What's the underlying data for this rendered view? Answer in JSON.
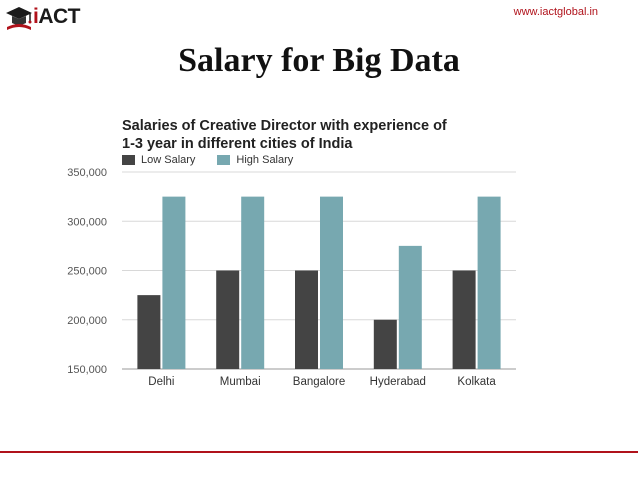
{
  "header": {
    "logo_text": "iACT",
    "url": "www.iactglobal.in"
  },
  "slide": {
    "title": "Salary for Big Data"
  },
  "colors": {
    "low": "#444444",
    "high": "#77a8b0",
    "accent": "#b0121b",
    "grid": "#d8d8d8"
  },
  "chart_data": {
    "type": "bar",
    "title": "Salaries of Creative Director with experience of 1-3 year in different cities of India",
    "title_lines": [
      "Salaries of Creative Director with experience of",
      "1-3 year in different cities of India"
    ],
    "categories": [
      "Delhi",
      "Mumbai",
      "Bangalore",
      "Hyderabad",
      "Kolkata"
    ],
    "series": [
      {
        "name": "Low Salary",
        "values": [
          225000,
          250000,
          250000,
          200000,
          250000
        ]
      },
      {
        "name": "High Salary",
        "values": [
          325000,
          325000,
          325000,
          275000,
          325000
        ]
      }
    ],
    "ylim": [
      150000,
      350000
    ],
    "yticks": [
      "150,000",
      "200,000",
      "250,000",
      "300,000",
      "350,000"
    ],
    "ytick_values": [
      150000,
      200000,
      250000,
      300000,
      350000
    ],
    "legend": "top-left",
    "grid": true
  }
}
